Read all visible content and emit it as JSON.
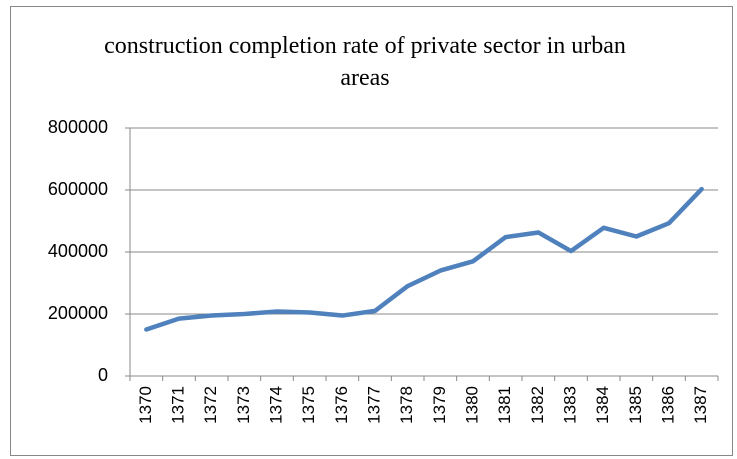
{
  "chart_data": {
    "type": "line",
    "title": "construction completion rate of private sector in urban areas",
    "categories": [
      "1370",
      "1371",
      "1372",
      "1373",
      "1374",
      "1375",
      "1376",
      "1377",
      "1378",
      "1379",
      "1380",
      "1381",
      "1382",
      "1383",
      "1384",
      "1385",
      "1386",
      "1387"
    ],
    "series": [
      {
        "name": "construction completion rate",
        "color": "#4f81bd",
        "values": [
          150000,
          185000,
          195000,
          200000,
          208000,
          205000,
          195000,
          210000,
          290000,
          340000,
          370000,
          448000,
          463000,
          403000,
          478000,
          450000,
          493000,
          603000
        ]
      }
    ],
    "ylim": [
      0,
      800000
    ],
    "yticks": [
      0,
      200000,
      400000,
      600000,
      800000
    ],
    "grid": true
  }
}
